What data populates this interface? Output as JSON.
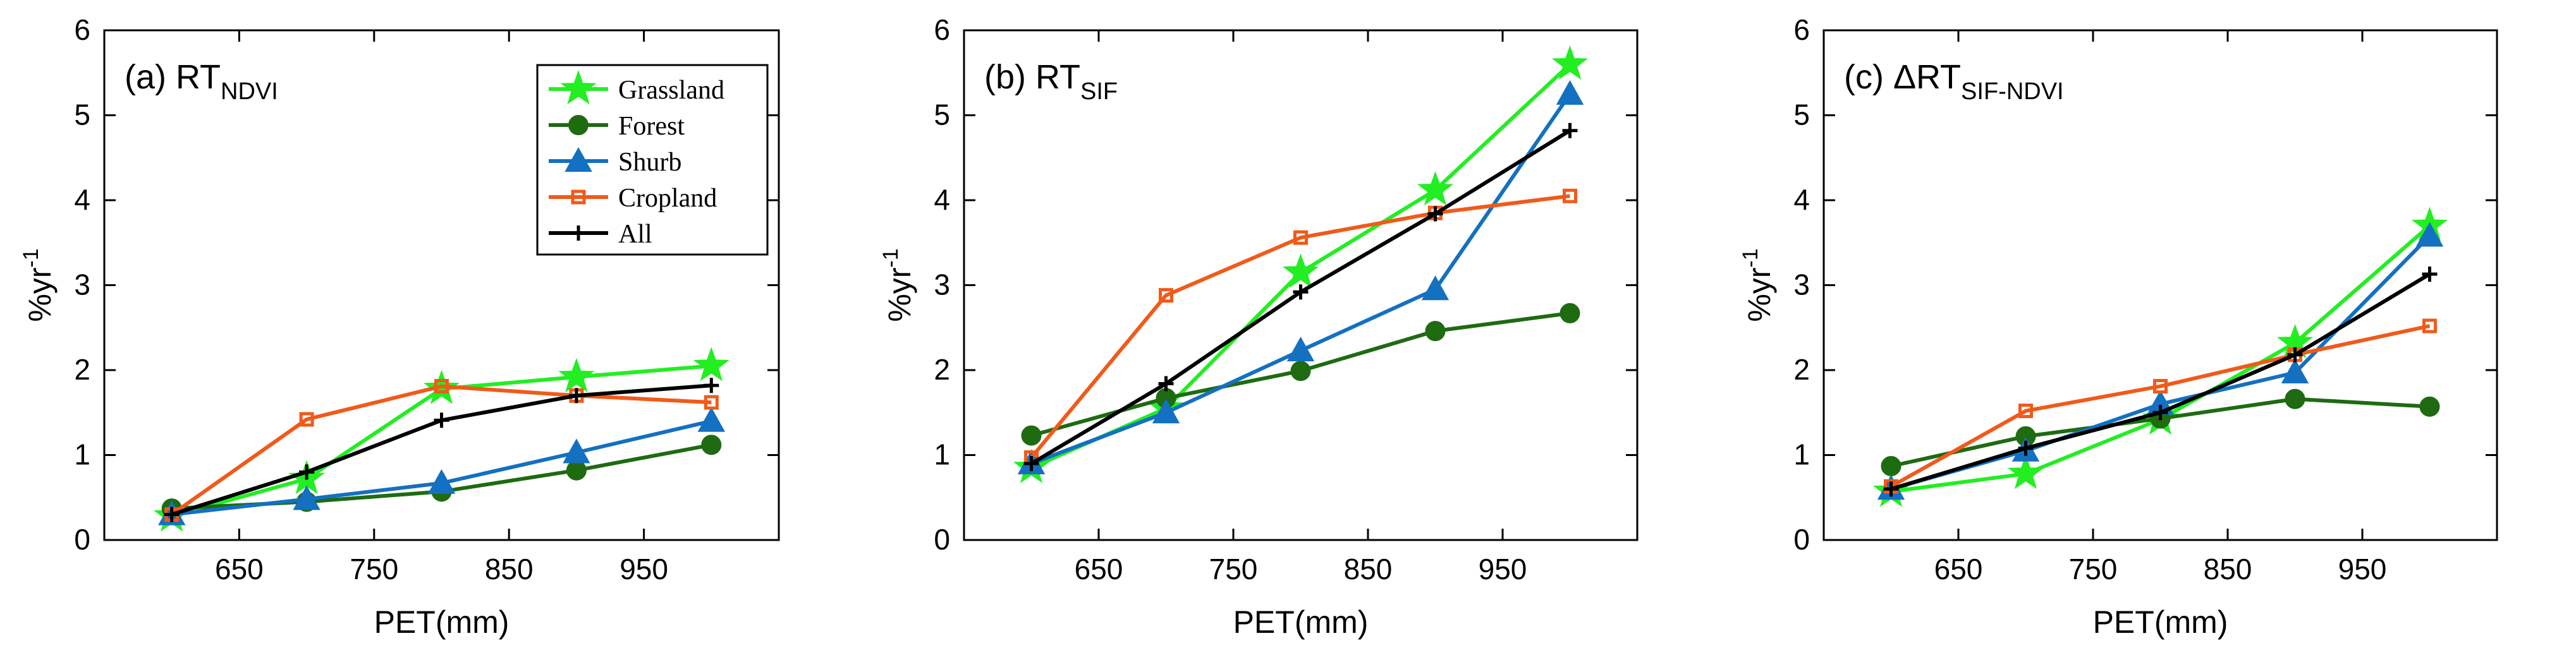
{
  "chart_data": [
    {
      "type": "line",
      "panel": "(a)",
      "title_main": "(a) RT",
      "title_sub": "NDVI",
      "xlabel": "PET(mm)",
      "ylabel_main": "%yr",
      "ylabel_sup": "-1",
      "x": [
        600,
        700,
        800,
        900,
        1000
      ],
      "xticks": [
        650,
        750,
        850,
        950
      ],
      "xlim": [
        550,
        1050
      ],
      "ylim": [
        0,
        6
      ],
      "yticks": [
        0,
        1,
        2,
        3,
        4,
        5,
        6
      ],
      "legend_placement": "top-right",
      "series": [
        {
          "name": "Grassland",
          "values": [
            0.28,
            0.72,
            1.78,
            1.92,
            2.05
          ]
        },
        {
          "name": "Forest",
          "values": [
            0.37,
            0.45,
            0.57,
            0.82,
            1.12
          ]
        },
        {
          "name": "Shurb",
          "values": [
            0.3,
            0.48,
            0.67,
            1.03,
            1.4
          ]
        },
        {
          "name": "Cropland",
          "values": [
            0.3,
            1.42,
            1.81,
            1.7,
            1.62
          ]
        },
        {
          "name": "All",
          "values": [
            0.3,
            0.8,
            1.41,
            1.7,
            1.82
          ]
        }
      ]
    },
    {
      "type": "line",
      "panel": "(b)",
      "title_main": "(b) RT",
      "title_sub": "SIF",
      "xlabel": "PET(mm)",
      "ylabel_main": "%yr",
      "ylabel_sup": "-1",
      "x": [
        600,
        700,
        800,
        900,
        1000
      ],
      "xticks": [
        650,
        750,
        850,
        950
      ],
      "xlim": [
        550,
        1050
      ],
      "ylim": [
        0,
        6
      ],
      "yticks": [
        0,
        1,
        2,
        3,
        4,
        5,
        6
      ],
      "series": [
        {
          "name": "Grassland",
          "values": [
            0.85,
            1.55,
            3.15,
            4.12,
            5.6
          ]
        },
        {
          "name": "Forest",
          "values": [
            1.23,
            1.67,
            1.99,
            2.46,
            2.67
          ]
        },
        {
          "name": "Shurb",
          "values": [
            0.9,
            1.5,
            2.23,
            2.95,
            5.25
          ]
        },
        {
          "name": "Cropland",
          "values": [
            0.97,
            2.88,
            3.56,
            3.85,
            4.05
          ]
        },
        {
          "name": "All",
          "values": [
            0.9,
            1.84,
            2.92,
            3.84,
            4.82
          ]
        }
      ]
    },
    {
      "type": "line",
      "panel": "(c)",
      "title_main": "(c) ΔRT",
      "title_sub": "SIF-NDVI",
      "xlabel": "PET(mm)",
      "ylabel_main": "%yr",
      "ylabel_sup": "-1",
      "x": [
        600,
        700,
        800,
        900,
        1000
      ],
      "xticks": [
        650,
        750,
        850,
        950
      ],
      "xlim": [
        550,
        1050
      ],
      "ylim": [
        0,
        6
      ],
      "yticks": [
        0,
        1,
        2,
        3,
        4,
        5,
        6
      ],
      "series": [
        {
          "name": "Grassland",
          "values": [
            0.57,
            0.78,
            1.42,
            2.32,
            3.7
          ]
        },
        {
          "name": "Forest",
          "values": [
            0.87,
            1.22,
            1.43,
            1.66,
            1.57
          ]
        },
        {
          "name": "Shurb",
          "values": [
            0.6,
            1.05,
            1.6,
            1.97,
            3.58
          ]
        },
        {
          "name": "Cropland",
          "values": [
            0.63,
            1.52,
            1.81,
            2.18,
            2.52
          ]
        },
        {
          "name": "All",
          "values": [
            0.6,
            1.08,
            1.5,
            2.18,
            3.13
          ]
        }
      ]
    }
  ],
  "series_styles": {
    "Grassland": {
      "color": "#22ee22",
      "marker": "star"
    },
    "Forest": {
      "color": "#1e6b12",
      "marker": "circle"
    },
    "Shurb": {
      "color": "#1470c0",
      "marker": "triangle"
    },
    "Cropland": {
      "color": "#f05a1a",
      "marker": "square-open"
    },
    "All": {
      "color": "#000000",
      "marker": "plus"
    }
  }
}
